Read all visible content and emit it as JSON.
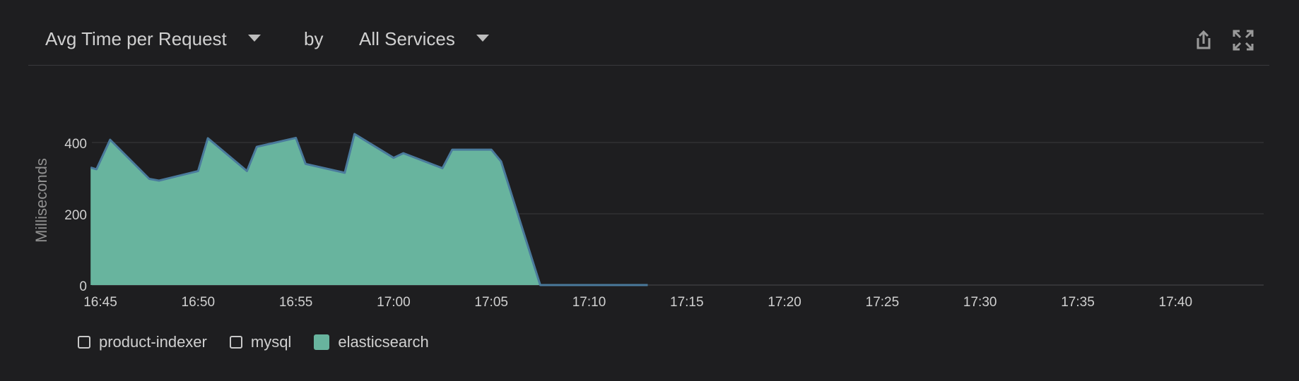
{
  "header": {
    "metric_label": "Avg Time per Request",
    "by_label": "by",
    "group_label": "All Services",
    "share_icon": "share-icon",
    "expand_icon": "expand-icon"
  },
  "colors": {
    "background": "#1e1e20",
    "area_fill": "#68b49e",
    "area_line": "#4a7a9c",
    "grid": "#3a3a3d",
    "axis_text": "#d0d0d0"
  },
  "legend": [
    {
      "label": "product-indexer",
      "checked": false
    },
    {
      "label": "mysql",
      "checked": false
    },
    {
      "label": "elasticsearch",
      "checked": true
    }
  ],
  "chart_data": {
    "type": "area",
    "ylabel": "Milliseconds",
    "ylim": [
      0,
      400
    ],
    "yticks": [
      "0",
      "200",
      "400"
    ],
    "xticks": [
      "16:45",
      "16:50",
      "16:55",
      "17:00",
      "17:05",
      "17:10",
      "17:15",
      "17:20",
      "17:25",
      "17:30",
      "17:35",
      "17:40"
    ],
    "xlim_minutes_from_first_tick": [
      -0.5,
      29.5
    ],
    "series": [
      {
        "name": "elasticsearch",
        "points": [
          [
            -0.5,
            330
          ],
          [
            -0.2,
            325
          ],
          [
            0.5,
            408
          ],
          [
            2.5,
            298
          ],
          [
            3.0,
            293
          ],
          [
            5.0,
            320
          ],
          [
            5.5,
            412
          ],
          [
            7.5,
            320
          ],
          [
            8.0,
            388
          ],
          [
            10.0,
            413
          ],
          [
            10.5,
            340
          ],
          [
            12.5,
            315
          ],
          [
            13.0,
            424
          ],
          [
            15.0,
            357
          ],
          [
            15.5,
            370
          ],
          [
            17.5,
            328
          ],
          [
            18.0,
            380
          ],
          [
            20.0,
            380
          ],
          [
            20.5,
            347
          ],
          [
            22.5,
            0
          ],
          [
            28.0,
            0
          ]
        ]
      }
    ],
    "grid": true,
    "legend_position": "bottom-left"
  }
}
